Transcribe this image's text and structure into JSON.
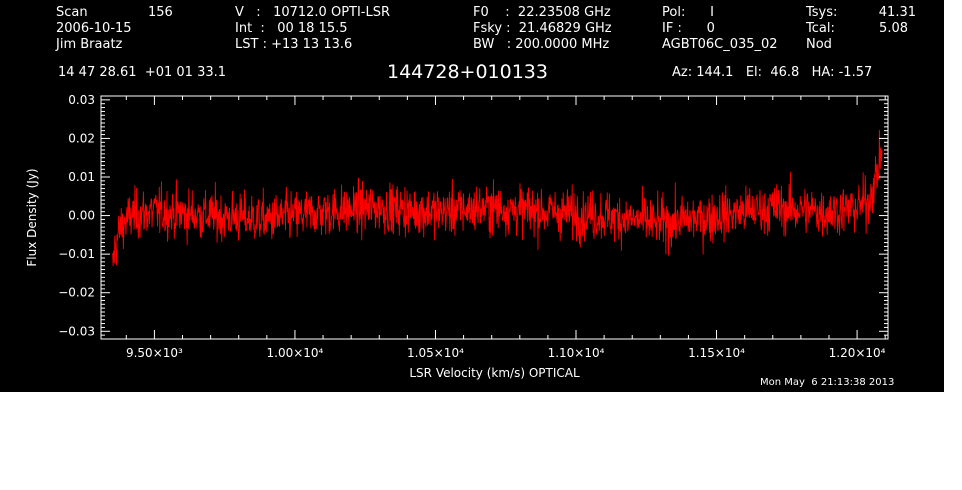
{
  "header": {
    "col1": [
      {
        "label": "Scan",
        "value": "156"
      },
      {
        "text": "2006-10-15"
      },
      {
        "text": "Jim Braatz"
      }
    ],
    "col2": [
      {
        "text": "V   :   10712.0 OPTI-LSR"
      },
      {
        "text": "Int  :   00 18 15.5"
      },
      {
        "text": "LST : +13 13 13.6"
      }
    ],
    "col3": [
      {
        "text": "F0    :  22.23508 GHz"
      },
      {
        "text": "Fsky :  21.46829 GHz"
      },
      {
        "text": "BW   : 200.0000 MHz"
      }
    ],
    "col4": [
      {
        "text": "Pol:      I"
      },
      {
        "text": "IF :      0"
      },
      {
        "text": "AGBT06C_035_02"
      }
    ],
    "col5": [
      {
        "label": "Tsys:",
        "value": "41.31"
      },
      {
        "label": "Tcal:",
        "value": "5.08"
      },
      {
        "label": "Nod",
        "value": ""
      }
    ],
    "coords": "14 47 28.61  +01 01 33.1",
    "source": "144728+010133",
    "pointing": "Az: 144.1   El:  46.8   HA: -1.57",
    "timestamp": "Mon May  6 21:13:38 2013"
  },
  "chart_data": {
    "type": "line",
    "title": "144728+010133",
    "xlabel": "LSR Velocity (km/s) OPTICAL",
    "ylabel": "Flux Density (Jy)",
    "xlim": [
      9310,
      12110
    ],
    "ylim": [
      -0.032,
      0.031
    ],
    "x_ticks": [
      9500,
      10000,
      10500,
      11000,
      11500,
      12000
    ],
    "x_tick_labels": [
      "9.50×10³",
      "1.00×10⁴",
      "1.05×10⁴",
      "1.10×10⁴",
      "1.15×10⁴",
      "1.20×10⁴"
    ],
    "y_ticks": [
      -0.03,
      -0.02,
      -0.01,
      0.0,
      0.01,
      0.02,
      0.03
    ],
    "y_tick_labels": [
      "−0.03",
      "−0.02",
      "−0.01",
      "0.00",
      "0.01",
      "0.02",
      "0.03"
    ],
    "series": [
      {
        "color": "#ff0000",
        "x_start": 9350,
        "x_end": 12090,
        "noise_rms": 0.0045,
        "x": [
          9350,
          9360,
          9380,
          9420,
          9500,
          9700,
          9900,
          10100,
          10300,
          10500,
          10700,
          10900,
          11100,
          11300,
          11500,
          11700,
          11900,
          12000,
          12040,
          12060,
          12075,
          12085,
          12090
        ],
        "baseline": [
          -0.014,
          -0.008,
          -0.003,
          0.0,
          0.001,
          0.0,
          -0.001,
          0.001,
          0.002,
          0.001,
          0.002,
          0.001,
          0.0,
          -0.002,
          0.0,
          0.002,
          0.001,
          0.002,
          0.004,
          0.008,
          0.012,
          0.016,
          0.019
        ]
      }
    ],
    "grid": false,
    "legend": "none"
  }
}
